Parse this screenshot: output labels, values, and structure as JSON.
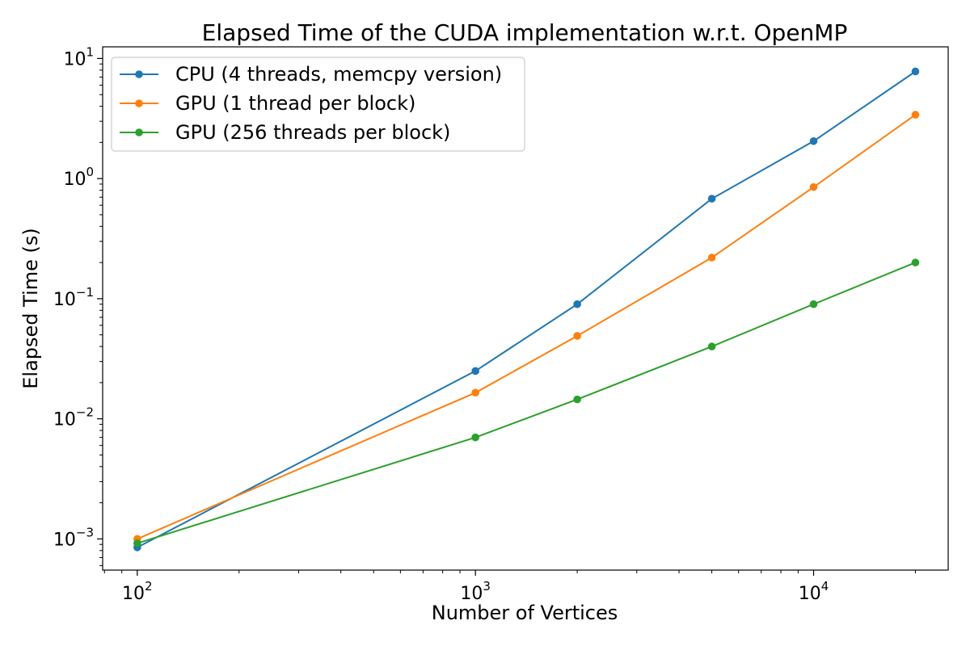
{
  "chart_data": {
    "type": "line",
    "title": "Elapsed Time of the CUDA implementation w.r.t. OpenMP",
    "xlabel": "Number of Vertices",
    "ylabel": "Elapsed Time (s)",
    "xscale": "log",
    "yscale": "log",
    "xlim": [
      79,
      25000
    ],
    "ylim": [
      0.00055,
      12.5
    ],
    "grid": false,
    "legend_position": "top-left",
    "x": [
      100,
      1000,
      2000,
      5000,
      10000,
      20000
    ],
    "x_ticks": [
      {
        "value": 100,
        "base": "10",
        "exp": "2"
      },
      {
        "value": 1000,
        "base": "10",
        "exp": "3"
      },
      {
        "value": 10000,
        "base": "10",
        "exp": "4"
      }
    ],
    "y_ticks": [
      {
        "value": 0.001,
        "base": "10",
        "exp": "−3"
      },
      {
        "value": 0.01,
        "base": "10",
        "exp": "−2"
      },
      {
        "value": 0.1,
        "base": "10",
        "exp": "−1"
      },
      {
        "value": 1,
        "base": "10",
        "exp": "0"
      },
      {
        "value": 10,
        "base": "10",
        "exp": "1"
      }
    ],
    "series": [
      {
        "name": "CPU (4 threads, memcpy version)",
        "color": "#1f77b4",
        "values": [
          0.00085,
          0.025,
          0.09,
          0.68,
          2.05,
          7.8
        ]
      },
      {
        "name": "GPU (1 thread per block)",
        "color": "#ff7f0e",
        "values": [
          0.001,
          0.0165,
          0.049,
          0.22,
          0.85,
          3.4
        ]
      },
      {
        "name": "GPU (256 threads per block)",
        "color": "#2ca02c",
        "values": [
          0.00092,
          0.007,
          0.0145,
          0.04,
          0.09,
          0.2
        ]
      }
    ]
  }
}
